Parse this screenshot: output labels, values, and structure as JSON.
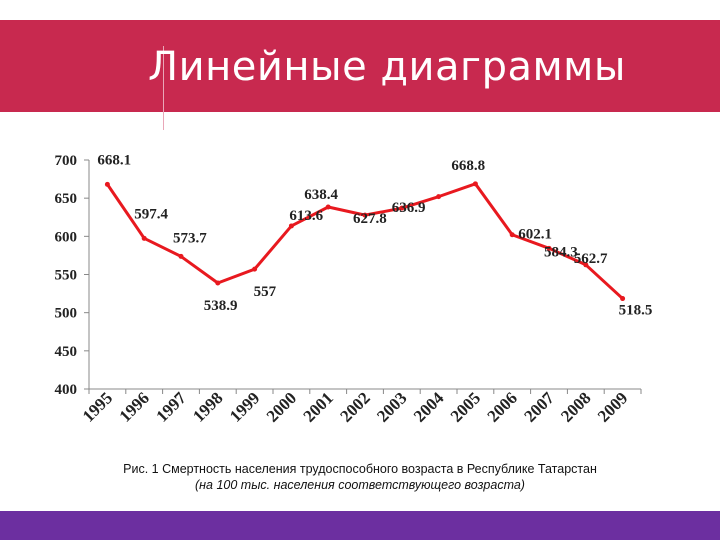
{
  "slide": {
    "title": "Линейные диаграммы",
    "caption_line1": "Рис. 1 Смертность населения трудоспособного возраста в Республике Татарстан",
    "caption_line2": "(на 100 тыс. населения соответствующего возраста)"
  },
  "colors": {
    "title_bar": "#c8294f",
    "footer_bar": "#6c2fa0",
    "series": "#e8191f"
  },
  "chart_data": {
    "type": "line",
    "title": "",
    "xlabel": "",
    "ylabel": "",
    "categories": [
      "1995",
      "1996",
      "1997",
      "1998",
      "1999",
      "2000",
      "2001",
      "2002",
      "2003",
      "2004",
      "2005",
      "2006",
      "2007",
      "2008",
      "2009"
    ],
    "series": [
      {
        "values": [
          668.1,
          597.4,
          573.7,
          538.9,
          557,
          613.6,
          638.4,
          627.8,
          636.9,
          652,
          668.8,
          602.1,
          584.3,
          562.7,
          518.5
        ]
      }
    ],
    "data_labels": [
      "668.1",
      "597.4",
      "573.7",
      "538.9",
      "557",
      "613.6",
      "638.4",
      "627.8",
      "636.9",
      "",
      "668.8",
      "602.1",
      "584.3",
      "562.7",
      "518.5"
    ],
    "ylim": [
      400,
      700
    ],
    "yticks": [
      400,
      450,
      500,
      550,
      600,
      650,
      700
    ],
    "grid": false,
    "legend": "none"
  }
}
